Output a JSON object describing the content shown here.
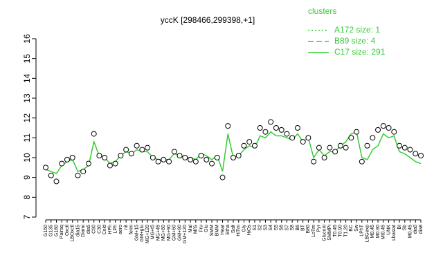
{
  "chart_data": {
    "type": "line",
    "title": "yccK [298466,299398,+1]",
    "categories": [
      "G150",
      "G135",
      "G180",
      "Pairaq",
      "Oxctl",
      "LBOxctl",
      "dia15",
      "Diami",
      "dia5",
      "C90",
      "C30",
      "Cold",
      "HPh",
      "LPh",
      "aero",
      "nit",
      "ferm",
      "GM+15",
      "GM+glu",
      "MG+120",
      "MG+t5",
      "MG+45",
      "MG+60",
      "MG+90",
      "GM+60",
      "GM+90",
      "GM+120",
      "Mal",
      "M/G",
      "Fru",
      "Glu",
      "SMM",
      "BMM",
      "Heat",
      "Etha",
      "Salt",
      "HiTm",
      "Gly",
      "HiOs",
      "S1",
      "S2",
      "S3",
      "S4",
      "S5",
      "S6",
      "S7",
      "S8",
      "B6",
      "BT",
      "B80",
      "LoTm",
      "Pyr",
      "Gluconi",
      "SMMPi",
      "T0.45",
      "T0.90",
      "T1.20",
      "BC",
      "Sw",
      "LPhT",
      "LBGexp",
      "M0.45",
      "M0.90",
      "Mt0.45",
      "UNK",
      "Lbastat",
      "BI",
      "Sb",
      "M0.45",
      "dia0",
      "dia8"
    ],
    "values": [
      9.5,
      9.1,
      8.8,
      9.7,
      9.9,
      10.0,
      9.1,
      9.3,
      9.7,
      11.2,
      10.1,
      10.0,
      9.6,
      9.7,
      10.1,
      10.4,
      10.2,
      10.6,
      10.4,
      10.5,
      10.0,
      9.8,
      9.9,
      9.8,
      10.3,
      10.1,
      10.0,
      9.9,
      9.8,
      10.1,
      9.9,
      9.7,
      10.0,
      9.0,
      11.6,
      10.0,
      10.1,
      10.6,
      10.8,
      10.6,
      11.5,
      11.3,
      11.8,
      11.5,
      11.4,
      11.2,
      11.0,
      11.5,
      10.8,
      11.0,
      9.8,
      10.5,
      10.0,
      10.5,
      10.3,
      10.6,
      10.5,
      11.0,
      11.3,
      9.8,
      10.6,
      11.0,
      11.4,
      11.6,
      11.5,
      11.3,
      10.6,
      10.5,
      10.4,
      10.2,
      10.1
    ],
    "point_color": "#000000",
    "series": [
      {
        "name": "C17 size: 291",
        "color": "#33cc33",
        "dash": "solid",
        "values": [
          9.4,
          9.3,
          9.2,
          9.6,
          9.8,
          9.9,
          9.3,
          9.4,
          9.6,
          10.8,
          10.1,
          10.0,
          9.7,
          9.8,
          10.1,
          10.3,
          10.2,
          10.4,
          10.3,
          10.3,
          10.0,
          9.9,
          9.9,
          9.9,
          10.2,
          10.1,
          10.0,
          10.0,
          9.9,
          10.2,
          10.1,
          9.9,
          10.1,
          9.3,
          11.2,
          10.0,
          10.1,
          10.4,
          10.6,
          10.5,
          11.1,
          11.0,
          11.3,
          11.1,
          11.1,
          11.0,
          10.9,
          11.2,
          10.8,
          11.0,
          10.0,
          10.4,
          10.1,
          10.3,
          10.3,
          10.6,
          10.8,
          11.2,
          11.3,
          10.0,
          9.9,
          10.4,
          10.6,
          11.2,
          11.0,
          11.1,
          10.3,
          10.2,
          10.0,
          9.8,
          9.7
        ]
      }
    ],
    "legend": {
      "title": "clusters",
      "color": "#33cc33",
      "entries": [
        {
          "label": "A172 size: 1",
          "dash": "dotted"
        },
        {
          "label": "B89 size: 4",
          "dash": "dashed"
        },
        {
          "label": "C17 size: 291",
          "dash": "solid"
        }
      ]
    },
    "ylim": [
      7,
      16
    ],
    "yticks": [
      7,
      8,
      9,
      10,
      11,
      12,
      13,
      14,
      15,
      16
    ]
  }
}
